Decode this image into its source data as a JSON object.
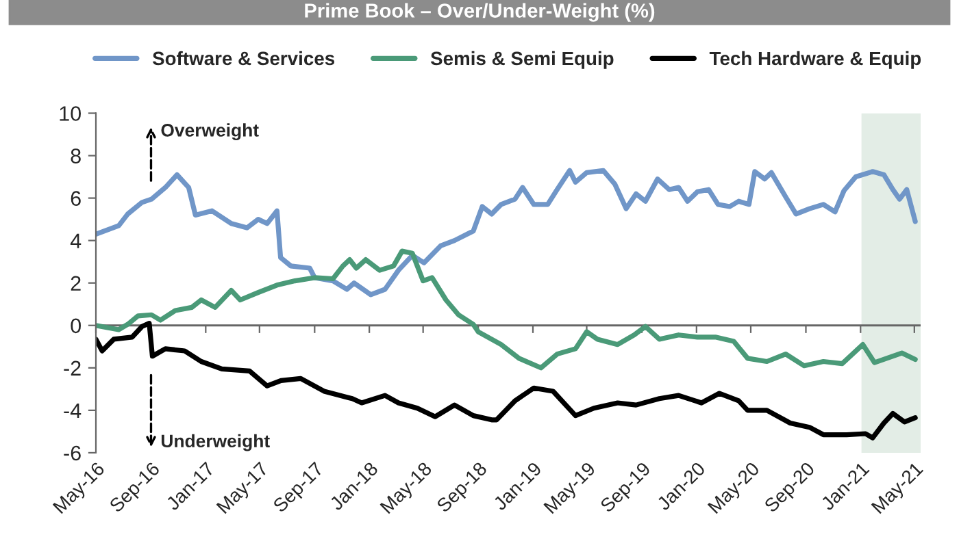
{
  "chart_data": {
    "type": "line",
    "title": "Prime Book – Over/Under-Weight (%)",
    "annotations": [
      "Overweight",
      "Underweight"
    ],
    "ylim": [
      -6,
      10
    ],
    "yticks": [
      -6,
      -4,
      -2,
      0,
      2,
      4,
      6,
      8,
      10
    ],
    "xlim": [
      "2016-05-01",
      "2021-05-15"
    ],
    "xticks": [
      {
        "value": "2016-05-01",
        "label": "May-16"
      },
      {
        "value": "2016-09-01",
        "label": "Sep-16"
      },
      {
        "value": "2017-01-01",
        "label": "Jan-17"
      },
      {
        "value": "2017-05-01",
        "label": "May-17"
      },
      {
        "value": "2017-09-01",
        "label": "Sep-17"
      },
      {
        "value": "2018-01-01",
        "label": "Jan-18"
      },
      {
        "value": "2018-05-01",
        "label": "May-18"
      },
      {
        "value": "2018-09-01",
        "label": "Sep-18"
      },
      {
        "value": "2019-01-01",
        "label": "Jan-19"
      },
      {
        "value": "2019-05-01",
        "label": "May-19"
      },
      {
        "value": "2019-09-01",
        "label": "Sep-19"
      },
      {
        "value": "2020-01-01",
        "label": "Jan-20"
      },
      {
        "value": "2020-05-01",
        "label": "May-20"
      },
      {
        "value": "2020-09-01",
        "label": "Sep-20"
      },
      {
        "value": "2021-01-01",
        "label": "Jan-21"
      },
      {
        "value": "2021-05-01",
        "label": "May-21"
      }
    ],
    "bands": [
      {
        "axis": "x",
        "from": "2021-01-03",
        "to": "2021-05-15",
        "color": "#e3ede6"
      }
    ],
    "ref_lines": [
      {
        "axis": "y",
        "value": 0,
        "color": "#666666"
      }
    ],
    "legend": "top",
    "grid": false,
    "marker": "none",
    "line_style": "solid",
    "series": [
      {
        "name": "Software & Services",
        "color": "#7096c8",
        "x": [
          "2016-05-01",
          "2016-06-21",
          "2016-07-11",
          "2016-08-12",
          "2016-09-02",
          "2016-10-03",
          "2016-10-29",
          "2016-11-24",
          "2016-12-09",
          "2017-01-15",
          "2017-02-27",
          "2017-04-03",
          "2017-04-28",
          "2017-05-18",
          "2017-06-09",
          "2017-06-17",
          "2017-07-10",
          "2017-08-21",
          "2017-09-01",
          "2017-10-12",
          "2017-11-12",
          "2017-11-28",
          "2018-01-04",
          "2018-02-05",
          "2018-03-07",
          "2018-04-07",
          "2018-05-03",
          "2018-06-09",
          "2018-07-10",
          "2018-08-21",
          "2018-09-10",
          "2018-10-01",
          "2018-10-22",
          "2018-11-22",
          "2018-12-09",
          "2019-01-03",
          "2019-02-03",
          "2019-02-24",
          "2019-03-24",
          "2019-04-06",
          "2019-05-01",
          "2019-06-07",
          "2019-07-03",
          "2019-07-28",
          "2019-08-19",
          "2019-09-09",
          "2019-10-06",
          "2019-11-01",
          "2019-11-22",
          "2019-12-12",
          "2020-01-03",
          "2020-01-28",
          "2020-02-18",
          "2020-03-15",
          "2020-04-04",
          "2020-04-27",
          "2020-05-10",
          "2020-06-01",
          "2020-06-16",
          "2020-07-18",
          "2020-08-10",
          "2020-09-09",
          "2020-10-10",
          "2020-11-05",
          "2020-11-25",
          "2020-12-21",
          "2021-01-28",
          "2021-02-22",
          "2021-03-14",
          "2021-03-29",
          "2021-04-14",
          "2021-05-03"
        ],
        "values": [
          4.3,
          4.7,
          5.25,
          5.8,
          5.95,
          6.5,
          7.1,
          6.5,
          5.2,
          5.4,
          4.8,
          4.6,
          5.0,
          4.8,
          5.4,
          3.2,
          2.8,
          2.7,
          2.25,
          2.1,
          1.7,
          2.0,
          1.45,
          1.7,
          2.6,
          3.3,
          2.95,
          3.75,
          4.0,
          4.45,
          5.6,
          5.25,
          5.7,
          5.95,
          6.5,
          5.7,
          5.7,
          6.4,
          7.3,
          6.75,
          7.2,
          7.3,
          6.65,
          5.5,
          6.2,
          5.85,
          6.9,
          6.4,
          6.5,
          5.85,
          6.3,
          6.4,
          5.7,
          5.6,
          5.85,
          5.7,
          7.25,
          6.9,
          7.2,
          6.05,
          5.25,
          5.5,
          5.7,
          5.35,
          6.35,
          7.0,
          7.25,
          7.1,
          6.4,
          5.95,
          6.4,
          4.9
        ]
      },
      {
        "name": "Semis & Semi Equip",
        "color": "#4a9a78",
        "x": [
          "2016-05-01",
          "2016-06-21",
          "2016-07-11",
          "2016-08-03",
          "2016-09-02",
          "2016-09-22",
          "2016-10-25",
          "2016-12-01",
          "2016-12-22",
          "2017-01-22",
          "2017-02-27",
          "2017-03-19",
          "2017-04-28",
          "2017-06-09",
          "2017-07-19",
          "2017-09-01",
          "2017-10-12",
          "2017-11-03",
          "2017-11-18",
          "2017-12-03",
          "2017-12-24",
          "2018-01-24",
          "2018-02-24",
          "2018-03-15",
          "2018-04-07",
          "2018-05-01",
          "2018-05-21",
          "2018-06-21",
          "2018-07-19",
          "2018-08-21",
          "2018-09-01",
          "2018-10-22",
          "2018-12-01",
          "2019-01-19",
          "2019-02-24",
          "2019-04-06",
          "2019-05-01",
          "2019-05-25",
          "2019-07-09",
          "2019-08-15",
          "2019-09-09",
          "2019-10-10",
          "2019-11-22",
          "2020-01-03",
          "2020-02-12",
          "2020-03-24",
          "2020-04-24",
          "2020-06-06",
          "2020-07-18",
          "2020-08-28",
          "2020-10-10",
          "2020-11-21",
          "2021-01-06",
          "2021-02-01",
          "2021-04-03",
          "2021-05-03"
        ],
        "values": [
          0.0,
          -0.2,
          0.05,
          0.45,
          0.5,
          0.25,
          0.7,
          0.85,
          1.2,
          0.85,
          1.65,
          1.2,
          1.55,
          1.9,
          2.1,
          2.25,
          2.2,
          2.8,
          3.1,
          2.7,
          3.1,
          2.6,
          2.8,
          3.5,
          3.4,
          2.1,
          2.25,
          1.2,
          0.5,
          0.05,
          -0.3,
          -0.9,
          -1.55,
          -2.0,
          -1.35,
          -1.1,
          -0.3,
          -0.65,
          -0.9,
          -0.45,
          -0.05,
          -0.65,
          -0.45,
          -0.55,
          -0.55,
          -0.75,
          -1.55,
          -1.7,
          -1.35,
          -1.9,
          -1.7,
          -1.8,
          -0.9,
          -1.75,
          -1.3,
          -1.6
        ]
      },
      {
        "name": "Tech Hardware & Equip",
        "color": "#000000",
        "x": [
          "2016-05-01",
          "2016-05-15",
          "2016-06-10",
          "2016-07-21",
          "2016-08-12",
          "2016-08-28",
          "2016-09-04",
          "2016-10-03",
          "2016-11-15",
          "2016-12-22",
          "2017-02-06",
          "2017-04-09",
          "2017-05-18",
          "2017-06-18",
          "2017-08-01",
          "2017-09-22",
          "2017-11-24",
          "2017-12-15",
          "2018-02-05",
          "2018-03-07",
          "2018-04-18",
          "2018-05-28",
          "2018-07-10",
          "2018-08-21",
          "2018-10-01",
          "2018-10-12",
          "2018-11-22",
          "2019-01-03",
          "2019-02-15",
          "2019-04-06",
          "2019-05-17",
          "2019-07-09",
          "2019-08-19",
          "2019-10-10",
          "2019-11-22",
          "2020-01-12",
          "2020-02-21",
          "2020-04-04",
          "2020-04-24",
          "2020-06-06",
          "2020-07-28",
          "2020-09-09",
          "2020-10-10",
          "2020-12-01",
          "2021-01-12",
          "2021-01-28",
          "2021-02-22",
          "2021-03-14",
          "2021-04-09",
          "2021-05-03"
        ],
        "values": [
          -0.65,
          -1.2,
          -0.65,
          -0.55,
          -0.05,
          0.1,
          -1.45,
          -1.1,
          -1.2,
          -1.7,
          -2.05,
          -2.15,
          -2.85,
          -2.6,
          -2.5,
          -3.1,
          -3.45,
          -3.65,
          -3.3,
          -3.65,
          -3.9,
          -4.3,
          -3.75,
          -4.25,
          -4.45,
          -4.45,
          -3.55,
          -2.95,
          -3.1,
          -4.25,
          -3.9,
          -3.65,
          -3.75,
          -3.45,
          -3.3,
          -3.65,
          -3.2,
          -3.55,
          -4.0,
          -4.0,
          -4.6,
          -4.8,
          -5.15,
          -5.15,
          -5.1,
          -5.3,
          -4.6,
          -4.15,
          -4.55,
          -4.35
        ]
      }
    ]
  }
}
